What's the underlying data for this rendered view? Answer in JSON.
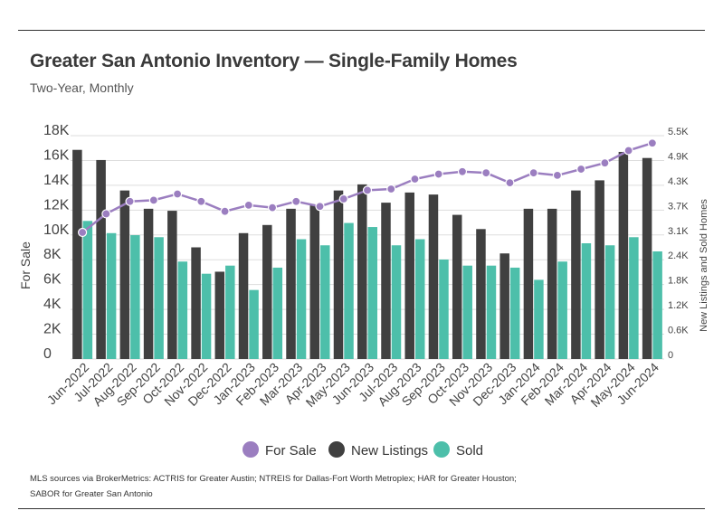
{
  "header": {
    "title": "Greater San Antonio Inventory — Single-Family Homes",
    "subtitle": "Two-Year, Monthly"
  },
  "footer": {
    "source": "MLS sources via BrokerMetrics: ACTRIS for Greater Austin; NTREIS for Dallas-Fort Worth Metroplex; HAR for Greater Houston; SABOR for Greater San Antonio"
  },
  "colors": {
    "for_sale": "#9b7ec0",
    "new_listings": "#404040",
    "sold": "#4dbfaa",
    "grid": "#dddddd"
  },
  "chart_data": {
    "type": "bar",
    "title": "Greater San Antonio Inventory — Single-Family Homes",
    "subtitle": "Two-Year, Monthly",
    "categories": [
      "Jun-2022",
      "Jul-2022",
      "Aug-2022",
      "Sep-2022",
      "Oct-2022",
      "Nov-2022",
      "Dec-2022",
      "Jan-2023",
      "Feb-2023",
      "Mar-2023",
      "Apr-2023",
      "May-2023",
      "Jun-2023",
      "Jul-2023",
      "Aug-2023",
      "Sep-2023",
      "Oct-2023",
      "Nov-2023",
      "Dec-2023",
      "Jan-2024",
      "Feb-2024",
      "Mar-2024",
      "Apr-2024",
      "May-2024",
      "Jun-2024"
    ],
    "y_left": {
      "label": "For Sale",
      "ticks": [
        "0",
        "2K",
        "4K",
        "6K",
        "8K",
        "10K",
        "12K",
        "14K",
        "16K",
        "18K"
      ],
      "range": [
        0,
        18000
      ]
    },
    "y_right": {
      "label": "New Listings and Sold Homes",
      "ticks": [
        "0",
        "0.6K",
        "1.2K",
        "1.8K",
        "2.4K",
        "3.1K",
        "3.7K",
        "4.3K",
        "4.9K",
        "5.5K"
      ],
      "range": [
        0,
        5500
      ]
    },
    "series": [
      {
        "name": "For Sale",
        "type": "line",
        "axis": "left",
        "values": [
          10200,
          11700,
          12700,
          12800,
          13300,
          12700,
          11900,
          12400,
          12200,
          12700,
          12300,
          12900,
          13600,
          13700,
          14500,
          14900,
          15100,
          15000,
          14200,
          15000,
          14800,
          15300,
          15800,
          16800,
          17400
        ]
      },
      {
        "name": "New Listings",
        "type": "bar",
        "axis": "right",
        "values": [
          5150,
          4900,
          4150,
          3700,
          3650,
          2750,
          2150,
          3100,
          3300,
          3700,
          3800,
          4150,
          4300,
          3850,
          4100,
          4050,
          3550,
          3200,
          2600,
          3700,
          3700,
          4150,
          4400,
          5100,
          4950
        ]
      },
      {
        "name": "Sold",
        "type": "bar",
        "axis": "right",
        "values": [
          3400,
          3100,
          3050,
          3000,
          2400,
          2100,
          2300,
          1700,
          2250,
          2950,
          2800,
          3350,
          3250,
          2800,
          2950,
          2450,
          2300,
          2300,
          2250,
          1950,
          2400,
          2850,
          2800,
          3000,
          2650
        ]
      }
    ],
    "legend": {
      "position": "bottom",
      "entries": [
        "For Sale",
        "New Listings",
        "Sold"
      ]
    },
    "grid": true
  }
}
